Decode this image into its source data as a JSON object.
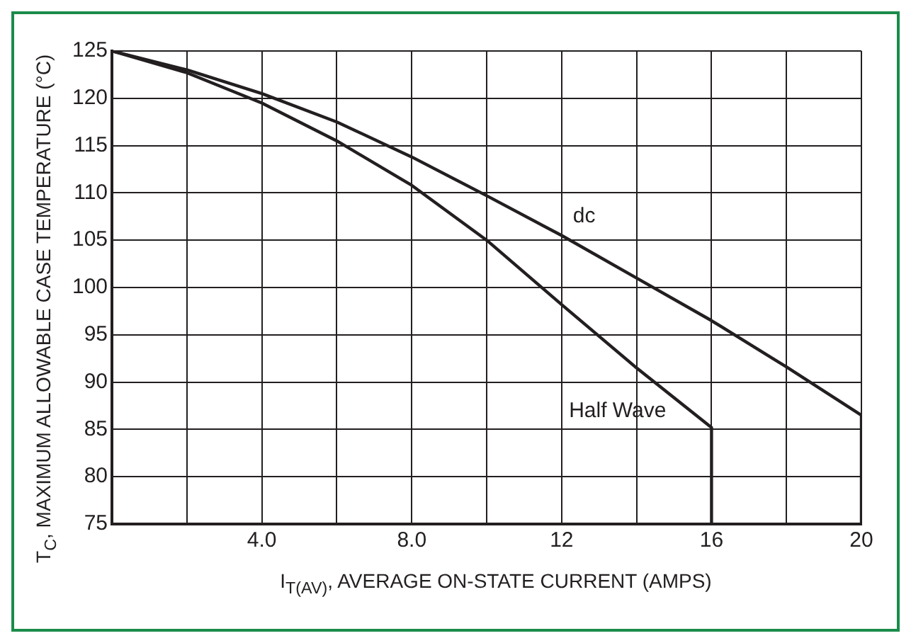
{
  "chart_data": {
    "type": "line",
    "xlabel": "I$_{T(AV)}$, AVERAGE ON-STATE CURRENT (AMPS)",
    "ylabel": "T$_{C}$, MAXIMUM  ALLOWABLE  CASE TEMPERATURE (°C)",
    "xlim": [
      0,
      20
    ],
    "ylim": [
      75,
      125
    ],
    "xticks": [
      {
        "value": 2,
        "label": null
      },
      {
        "value": 4,
        "label": "4.0"
      },
      {
        "value": 6,
        "label": null
      },
      {
        "value": 8,
        "label": "8.0"
      },
      {
        "value": 10,
        "label": null
      },
      12,
      {
        "value": 14,
        "label": null
      },
      16,
      {
        "value": 18,
        "label": null
      },
      20
    ],
    "yticks": [
      75,
      80,
      85,
      90,
      95,
      100,
      105,
      110,
      115,
      120,
      125
    ],
    "grid": true,
    "legend": false,
    "marker": "none",
    "line_style": "solid",
    "series": [
      {
        "name": "dc",
        "color": "#231f20",
        "x": [
          0,
          2,
          4,
          6,
          8,
          10,
          12,
          14,
          16,
          18,
          20,
          20
        ],
        "values": [
          125,
          123,
          120.5,
          117.5,
          113.8,
          109.7,
          105.5,
          101,
          96.5,
          91.6,
          86.5,
          75
        ]
      },
      {
        "name": "Half Wave",
        "color": "#231f20",
        "x": [
          0,
          2,
          4,
          6,
          8,
          10,
          12,
          14,
          16,
          16
        ],
        "values": [
          125,
          122.7,
          119.5,
          115.5,
          110.8,
          105,
          98.2,
          91.5,
          85.2,
          75
        ]
      }
    ]
  }
}
